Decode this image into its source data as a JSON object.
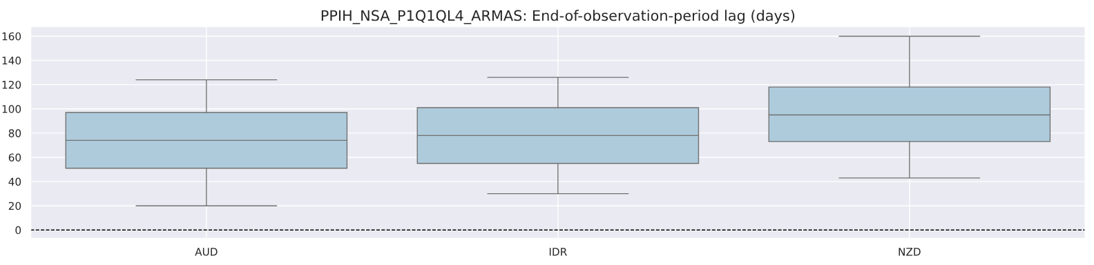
{
  "chart_data": {
    "type": "box",
    "title": "PPIH_NSA_P1Q1QL4_ARMAS: End-of-observation-period lag (days)",
    "categories": [
      "AUD",
      "IDR",
      "NZD"
    ],
    "boxes": [
      {
        "low": 20,
        "q1": 51,
        "median": 74,
        "q3": 97,
        "high": 124
      },
      {
        "low": 30,
        "q1": 55,
        "median": 78,
        "q3": 101,
        "high": 126
      },
      {
        "low": 43,
        "q1": 73,
        "median": 95,
        "q3": 118,
        "high": 160
      }
    ],
    "color": "#aecbdc",
    "ylim": [
      -7,
      168
    ],
    "yticks": [
      0,
      20,
      40,
      60,
      80,
      100,
      120,
      140,
      160
    ],
    "grid": true,
    "ref_lines": [
      {
        "axis": "y",
        "value": 0,
        "color": "#000000",
        "line_style": "dashed"
      }
    ]
  }
}
